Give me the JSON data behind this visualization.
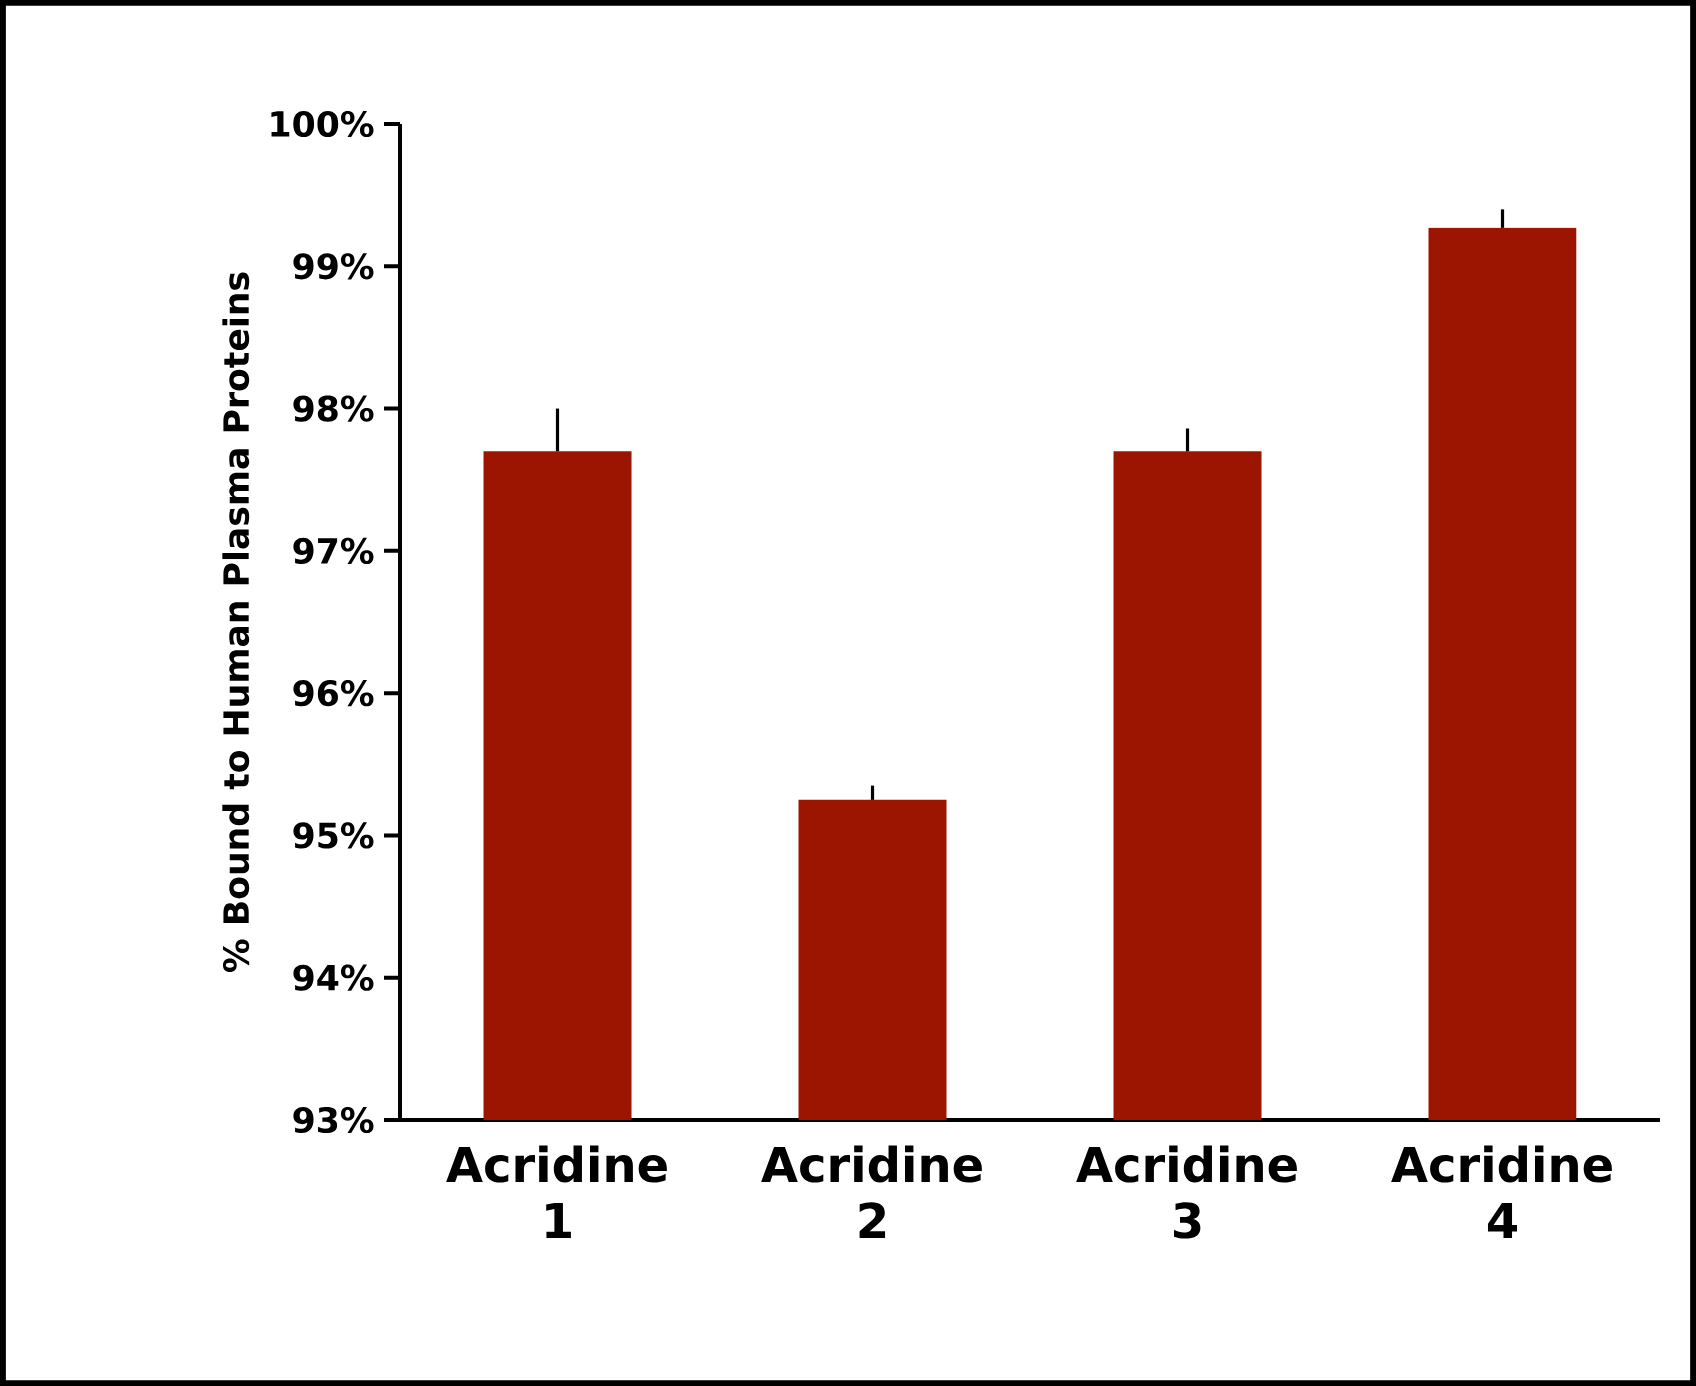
{
  "chart_data": {
    "type": "bar",
    "ylabel": "% Bound to Human Plasma Proteins",
    "categories": [
      "Acridine 1",
      "Acridine 2",
      "Acridine 3",
      "Acridine 4"
    ],
    "values": [
      97.7,
      95.25,
      97.7,
      99.27
    ],
    "errors": [
      [
        97.7,
        98.0
      ],
      [
        95.25,
        95.35
      ],
      [
        97.7,
        97.86
      ],
      [
        99.27,
        99.4
      ]
    ],
    "color": "#9c1500",
    "ylim": [
      93,
      100
    ],
    "yticks": [
      {
        "value": 93,
        "label": "93%"
      },
      {
        "value": 94,
        "label": "94%"
      },
      {
        "value": 95,
        "label": "95%"
      },
      {
        "value": 96,
        "label": "96%"
      },
      {
        "value": 97,
        "label": "97%"
      },
      {
        "value": 98,
        "label": "98%"
      },
      {
        "value": 99,
        "label": "99%"
      },
      {
        "value": 100,
        "label": "100%"
      }
    ],
    "grid": false
  }
}
